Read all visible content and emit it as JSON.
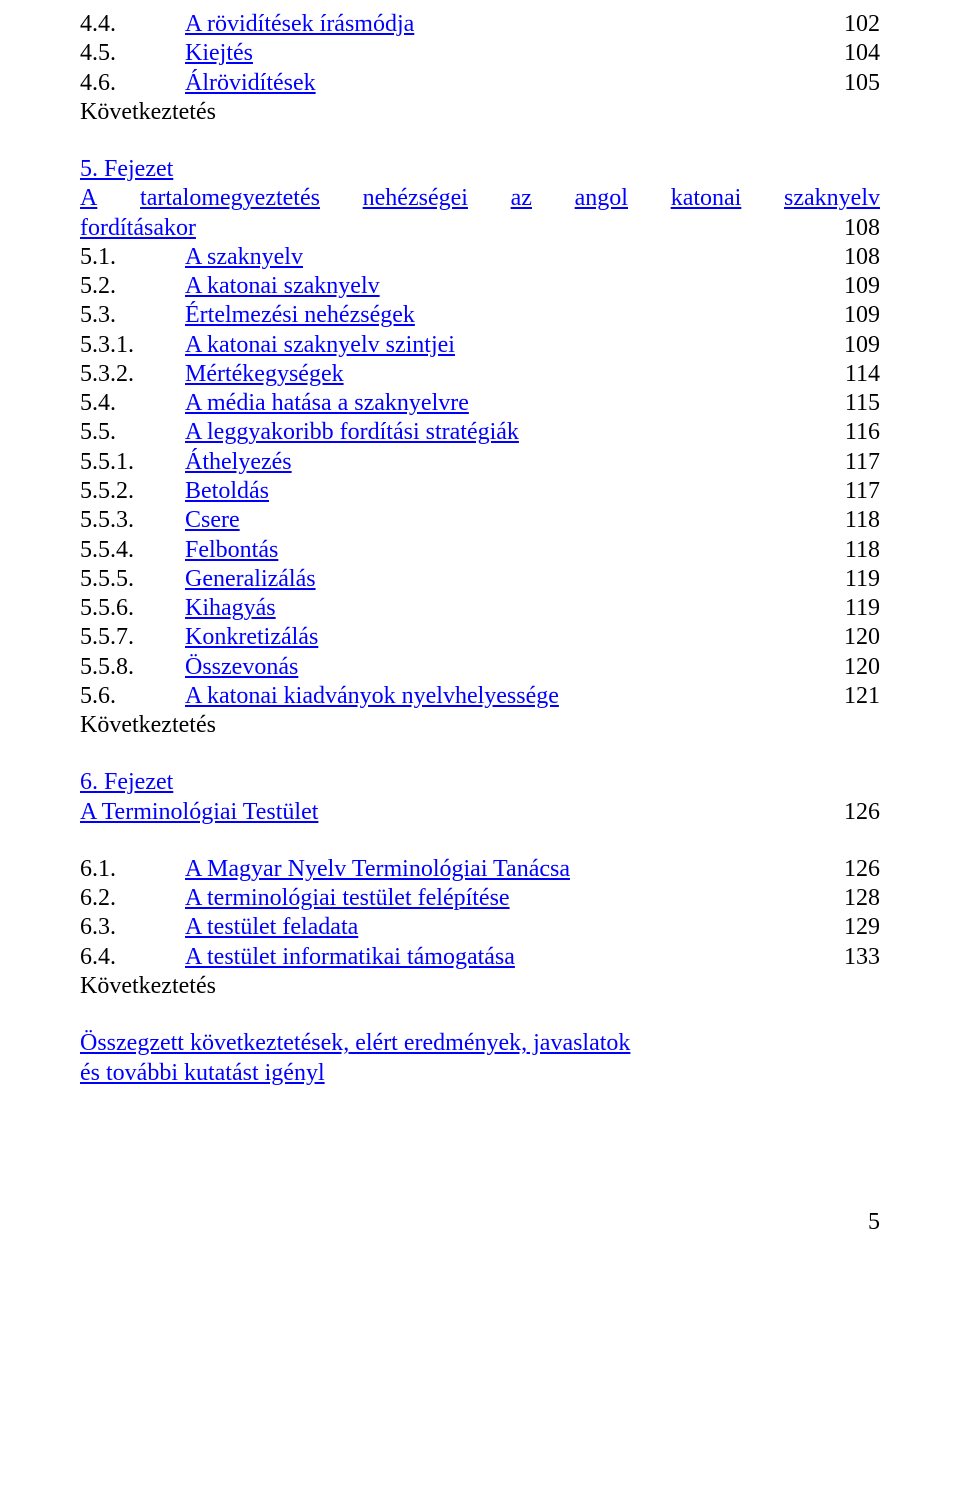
{
  "colors": {
    "link": "#0000ff",
    "text": "#000000",
    "background": "#ffffff"
  },
  "typography": {
    "font_family": "Times New Roman",
    "font_size_pt": 18
  },
  "section4": {
    "items": [
      {
        "num": "4.4.",
        "label": "A rövidítések írásmódja",
        "page": "102"
      },
      {
        "num": "4.5.",
        "label": "Kiejtés",
        "page": "104"
      },
      {
        "num": "4.6.",
        "label": "Álrövidítések",
        "page": "105"
      }
    ],
    "footer": "Következtetés"
  },
  "chapter5": {
    "heading_link": "5. Fejezet",
    "title_words": [
      "A",
      "tartalomegyeztetés",
      "nehézségei",
      "az",
      "angol",
      "katonai",
      "szaknyelv"
    ],
    "title_last": "fordításakor",
    "title_page": "108",
    "items": [
      {
        "num": "5.1.",
        "label": "A szaknyelv",
        "page": "108",
        "wide": false
      },
      {
        "num": "5.2.",
        "label": "A katonai szaknyelv",
        "page": "109",
        "wide": false
      },
      {
        "num": "5.3.",
        "label": "Értelmezési nehézségek",
        "page": "109",
        "wide": false
      },
      {
        "num": "5.3.1.",
        "label": "A katonai szaknyelv szintjei",
        "page": "109",
        "wide": false
      },
      {
        "num": "5.3.2.",
        "label": "Mértékegységek",
        "page": "114",
        "wide": false
      },
      {
        "num": "5.4.",
        "label": "A média hatása a szaknyelvre",
        "page": "115",
        "wide": false
      },
      {
        "num": "5.5.",
        "label": "A leggyakoribb fordítási stratégiák",
        "page": "116",
        "wide": false
      },
      {
        "num": "5.5.1.",
        "label": "Áthelyezés",
        "page": "117",
        "wide": false
      },
      {
        "num": "5.5.2.",
        "label": "Betoldás",
        "page": "117",
        "wide": false
      },
      {
        "num": "5.5.3.",
        "label": "Csere",
        "page": "118",
        "wide": false
      },
      {
        "num": "5.5.4.",
        "label": "Felbontás",
        "page": "118",
        "wide": false
      },
      {
        "num": "5.5.5.",
        "label": "Generalizálás",
        "page": "119",
        "wide": false
      },
      {
        "num": "5.5.6.",
        "label": "Kihagyás",
        "page": "119",
        "wide": false
      },
      {
        "num": "5.5.7.",
        "label": "Konkretizálás",
        "page": "120",
        "wide": false
      },
      {
        "num": "5.5.8.",
        "label": "Összevonás",
        "page": "120",
        "wide": false
      },
      {
        "num": "5.6.",
        "label": "A katonai kiadványok nyelvhelyessége",
        "page": "121",
        "wide": false
      }
    ],
    "footer": "Következtetés"
  },
  "chapter6": {
    "heading_link": "6. Fejezet",
    "title": "A Terminológiai Testület",
    "title_page": "126",
    "items": [
      {
        "num": "6.1.",
        "label": "A Magyar Nyelv Terminológiai Tanácsa",
        "page": "126"
      },
      {
        "num": "6.2.",
        "label": "A terminológiai testület felépítése",
        "page": "128"
      },
      {
        "num": "6.3.",
        "label": "A testület feladata",
        "page": "129"
      },
      {
        "num": "6.4.",
        "label": "A testület informatikai támogatása",
        "page": "133"
      }
    ],
    "footer": "Következtetés"
  },
  "summary": {
    "line1": "Összegzett következtetések, elért eredmények, javaslatok",
    "line2": "és további kutatást igényl"
  },
  "page_number": "5"
}
